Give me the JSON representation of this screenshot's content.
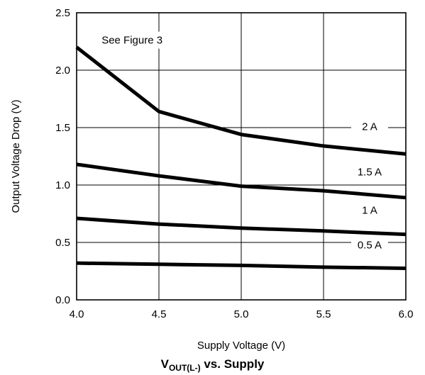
{
  "chart_data": {
    "type": "line",
    "title": "",
    "xlabel": "Supply Voltage (V)",
    "ylabel": "Output Voltage Drop (V)",
    "xlim": [
      4.0,
      6.0
    ],
    "ylim": [
      0.0,
      2.5
    ],
    "x_ticks": [
      "4.0",
      "4.5",
      "5.0",
      "5.5",
      "6.0"
    ],
    "y_ticks": [
      "0.0",
      "0.5",
      "1.0",
      "1.5",
      "2.0",
      "2.5"
    ],
    "grid": true,
    "series": [
      {
        "name": "2 A",
        "x": [
          4.0,
          4.5,
          5.0,
          5.5,
          6.0
        ],
        "y": [
          2.2,
          1.64,
          1.44,
          1.34,
          1.27
        ]
      },
      {
        "name": "1.5 A",
        "x": [
          4.0,
          4.5,
          5.0,
          5.5,
          6.0
        ],
        "y": [
          1.18,
          1.08,
          0.99,
          0.95,
          0.89
        ]
      },
      {
        "name": "1 A",
        "x": [
          4.0,
          4.5,
          5.0,
          5.5,
          6.0
        ],
        "y": [
          0.71,
          0.66,
          0.625,
          0.6,
          0.57
        ]
      },
      {
        "name": "0.5 A",
        "x": [
          4.0,
          4.5,
          5.0,
          5.5,
          6.0
        ],
        "y": [
          0.32,
          0.31,
          0.3,
          0.285,
          0.275
        ]
      }
    ],
    "annotations": [
      {
        "text": "See Figure 3",
        "x": 4.35,
        "y": 2.2
      }
    ]
  },
  "caption": {
    "main": "V",
    "subscript": "OUT(L-)",
    "rest": " vs. Supply"
  }
}
